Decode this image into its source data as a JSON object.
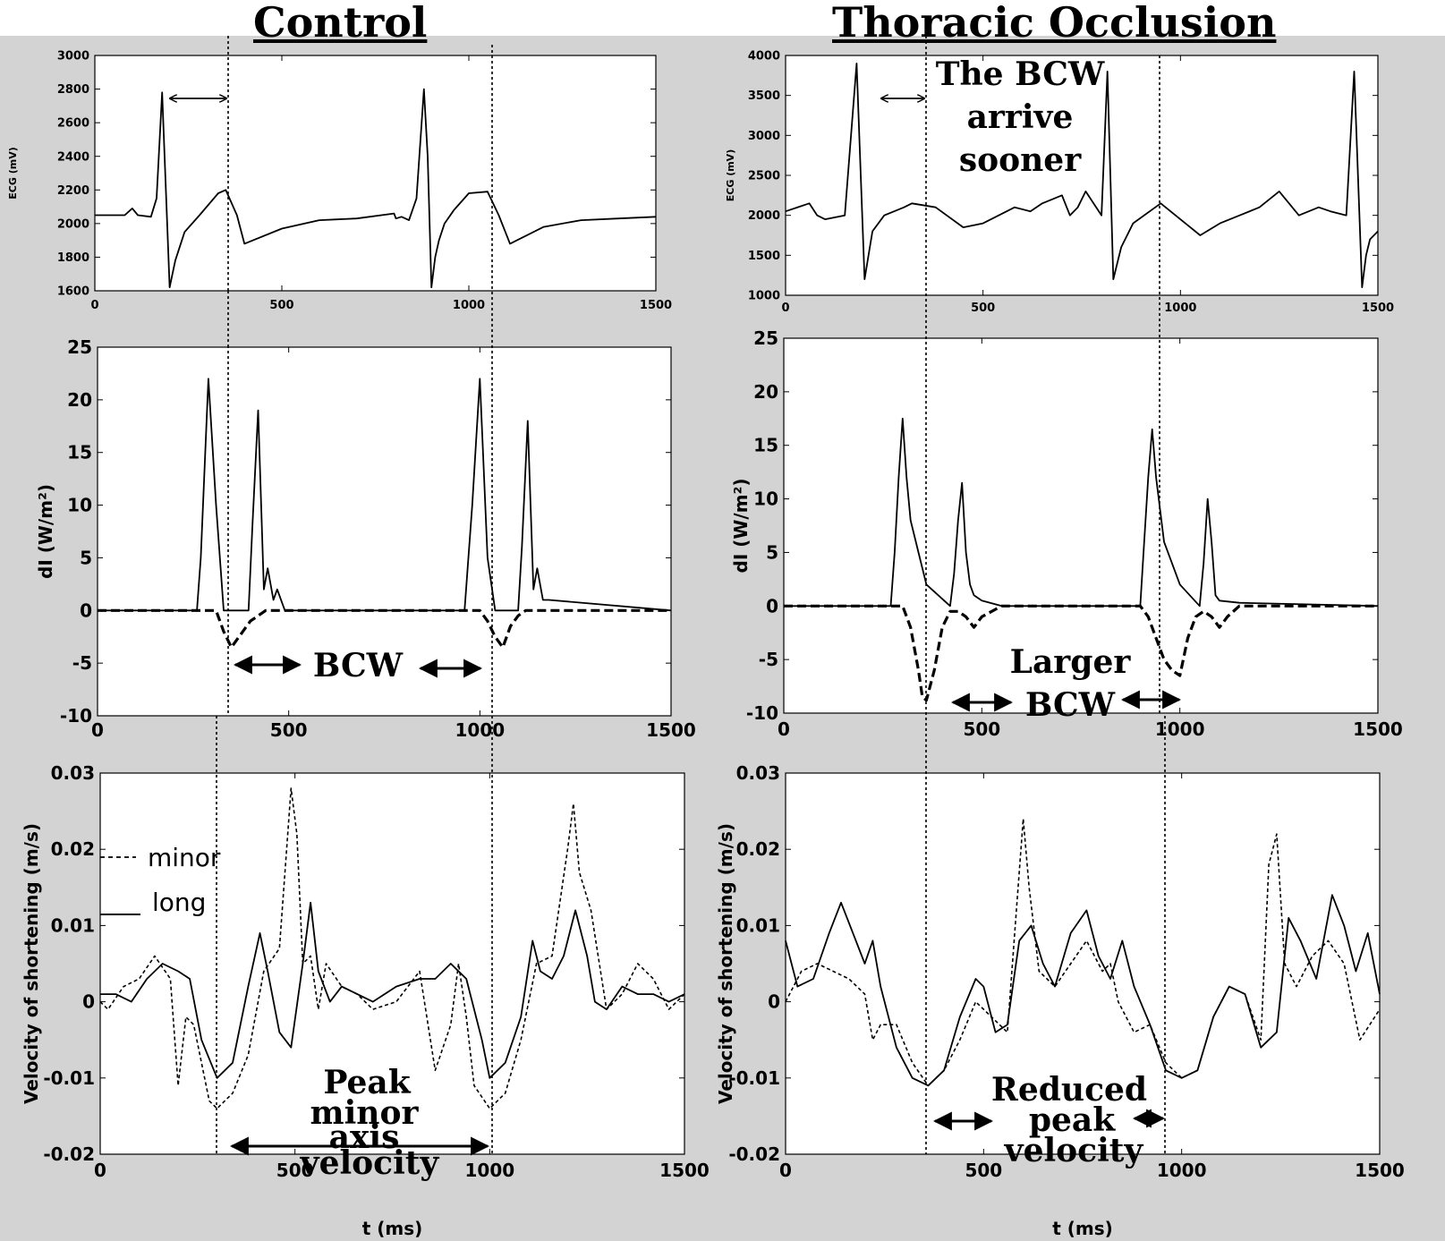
{
  "titles": {
    "left": "Control",
    "right": "Thoracic Occlusion"
  },
  "legend": {
    "minor": "minor",
    "long": "long"
  },
  "annotations": {
    "bcw": "BCW",
    "larger": "Larger",
    "larger_bcw": "BCW",
    "arrive_lines": [
      "The BCW",
      "arrive",
      "sooner"
    ],
    "peak_lines": [
      "Peak",
      "minor",
      "axis",
      "velocity"
    ],
    "reduced_lines": [
      "Reduced",
      "peak",
      "velocity"
    ]
  },
  "chart_data": [
    {
      "type": "line",
      "panel": "control-ecg",
      "title": "",
      "xlabel": "",
      "ylabel": "ECG (mV)",
      "xlim": [
        0,
        1500
      ],
      "ylim": [
        1600,
        3000
      ],
      "xticks": [
        "0",
        "500",
        "1000",
        "1500"
      ],
      "yticks": [
        "1600",
        "1800",
        "2000",
        "2200",
        "2400",
        "2600",
        "2800",
        "3000"
      ],
      "series": [
        {
          "style": "solid",
          "x": [
            0,
            80,
            100,
            115,
            150,
            165,
            180,
            190,
            200,
            215,
            240,
            280,
            330,
            350,
            380,
            400,
            500,
            600,
            700,
            800,
            805,
            820,
            840,
            860,
            880,
            890,
            900,
            910,
            920,
            935,
            960,
            1000,
            1050,
            1080,
            1110,
            1200,
            1300,
            1400,
            1500
          ],
          "y": [
            2050,
            2050,
            2090,
            2050,
            2040,
            2150,
            2780,
            2200,
            1620,
            1780,
            1950,
            2050,
            2180,
            2200,
            2050,
            1880,
            1970,
            2020,
            2030,
            2060,
            2030,
            2040,
            2020,
            2150,
            2800,
            2400,
            1620,
            1800,
            1900,
            2000,
            2080,
            2180,
            2190,
            2050,
            1880,
            1980,
            2020,
            2030,
            2040
          ]
        }
      ]
    },
    {
      "type": "line",
      "panel": "thoracic-ecg",
      "title": "",
      "xlabel": "",
      "ylabel": "ECG (mV)",
      "xlim": [
        0,
        1500
      ],
      "ylim": [
        1000,
        4000
      ],
      "xticks": [
        "0",
        "500",
        "1000",
        "1500"
      ],
      "yticks": [
        "1000",
        "1500",
        "2000",
        "2500",
        "3000",
        "3500",
        "4000"
      ],
      "series": [
        {
          "style": "solid",
          "x": [
            0,
            60,
            80,
            100,
            150,
            180,
            200,
            220,
            250,
            300,
            320,
            380,
            450,
            500,
            580,
            620,
            650,
            700,
            720,
            740,
            760,
            800,
            815,
            830,
            850,
            880,
            950,
            1050,
            1100,
            1150,
            1200,
            1250,
            1300,
            1350,
            1380,
            1420,
            1440,
            1460,
            1470,
            1480,
            1500
          ],
          "y": [
            2050,
            2150,
            2000,
            1950,
            2000,
            3900,
            1200,
            1800,
            2000,
            2100,
            2150,
            2100,
            1850,
            1900,
            2100,
            2050,
            2150,
            2250,
            2000,
            2100,
            2300,
            2000,
            3800,
            1200,
            1600,
            1900,
            2150,
            1750,
            1900,
            2000,
            2100,
            2300,
            2000,
            2100,
            2050,
            2000,
            3800,
            1100,
            1500,
            1700,
            1800
          ]
        }
      ]
    },
    {
      "type": "line",
      "panel": "control-di",
      "title": "",
      "xlabel": "",
      "ylabel": "dI (W/m²)",
      "xlim": [
        0,
        1500
      ],
      "ylim": [
        -10,
        25
      ],
      "xticks": [
        "0",
        "500",
        "1000",
        "1500"
      ],
      "yticks": [
        "-10",
        "-5",
        "0",
        "5",
        "10",
        "15",
        "20",
        "25"
      ],
      "series": [
        {
          "style": "solid",
          "x": [
            0,
            260,
            270,
            290,
            310,
            330,
            395,
            405,
            420,
            435,
            445,
            460,
            470,
            490,
            500,
            960,
            980,
            1000,
            1020,
            1040,
            1100,
            1110,
            1125,
            1140,
            1150,
            1165,
            1180,
            1500
          ],
          "y": [
            0,
            0,
            5,
            22,
            10,
            0,
            0,
            8,
            19,
            2,
            4,
            1,
            2,
            0,
            0,
            0,
            10,
            22,
            5,
            0,
            0,
            6,
            18,
            2,
            4,
            1,
            1,
            0
          ]
        },
        {
          "style": "dashed",
          "x": [
            0,
            310,
            330,
            350,
            380,
            400,
            420,
            440,
            460,
            1000,
            1020,
            1040,
            1060,
            1080,
            1100,
            1120,
            1500
          ],
          "y": [
            0,
            0,
            -2,
            -3.5,
            -2,
            -1,
            -0.5,
            0,
            0,
            0,
            -1,
            -2.5,
            -3.5,
            -1.5,
            -0.5,
            0,
            0
          ]
        }
      ]
    },
    {
      "type": "line",
      "panel": "thoracic-di",
      "title": "",
      "xlabel": "",
      "ylabel": "dI (W/m²)",
      "xlim": [
        0,
        1500
      ],
      "ylim": [
        -10,
        25
      ],
      "xticks": [
        "0",
        "500",
        "1000",
        "1500"
      ],
      "yticks": [
        "-10",
        "-5",
        "0",
        "5",
        "10",
        "15",
        "20",
        "25"
      ],
      "series": [
        {
          "style": "solid",
          "x": [
            0,
            270,
            280,
            290,
            300,
            310,
            320,
            340,
            360,
            420,
            430,
            440,
            450,
            460,
            470,
            480,
            500,
            550,
            900,
            910,
            920,
            930,
            940,
            960,
            1000,
            1050,
            1060,
            1070,
            1080,
            1090,
            1100,
            1150,
            1500
          ],
          "y": [
            0,
            0,
            5,
            12,
            17.5,
            12,
            8,
            5,
            2,
            0,
            3,
            8,
            11.5,
            5,
            2,
            1,
            0.5,
            0,
            0,
            6,
            12,
            16.5,
            12,
            6,
            2,
            0,
            4,
            10,
            6,
            1,
            0.5,
            0.3,
            0
          ]
        },
        {
          "style": "dashed",
          "x": [
            0,
            300,
            320,
            340,
            350,
            360,
            380,
            400,
            420,
            440,
            460,
            480,
            500,
            550,
            900,
            920,
            940,
            960,
            980,
            1000,
            1020,
            1040,
            1060,
            1080,
            1100,
            1120,
            1150,
            1200,
            1500
          ],
          "y": [
            0,
            0,
            -2,
            -6,
            -8.5,
            -8.8,
            -6,
            -2,
            -0.5,
            -0.5,
            -1,
            -2,
            -1,
            0,
            0,
            -1,
            -3,
            -5,
            -6,
            -6.5,
            -3,
            -1,
            -0.5,
            -1,
            -2,
            -1,
            0,
            0,
            0
          ]
        }
      ]
    },
    {
      "type": "line",
      "panel": "control-velocity",
      "title": "",
      "xlabel": "t (ms)",
      "ylabel": "Velocity of shortening (m/s)",
      "xlim": [
        0,
        1500
      ],
      "ylim": [
        -0.02,
        0.03
      ],
      "xticks": [
        "0",
        "500",
        "1000",
        "1500"
      ],
      "yticks": [
        "-0.02",
        "-0.01",
        "0",
        "0.01",
        "0.02",
        "0.03"
      ],
      "series": [
        {
          "name": "minor",
          "style": "dashed",
          "x": [
            0,
            20,
            60,
            100,
            140,
            180,
            200,
            220,
            240,
            260,
            280,
            300,
            340,
            380,
            420,
            460,
            490,
            505,
            520,
            540,
            560,
            580,
            620,
            660,
            700,
            760,
            820,
            860,
            900,
            920,
            940,
            960,
            1000,
            1040,
            1080,
            1120,
            1160,
            1200,
            1215,
            1230,
            1260,
            1300,
            1340,
            1380,
            1420,
            1460,
            1500
          ],
          "y": [
            0,
            -0.001,
            0.002,
            0.003,
            0.006,
            0.003,
            -0.011,
            -0.002,
            -0.003,
            -0.008,
            -0.013,
            -0.014,
            -0.012,
            -0.007,
            0.004,
            0.007,
            0.028,
            0.022,
            0.005,
            0.006,
            -0.001,
            0.005,
            0.002,
            0.001,
            -0.001,
            0,
            0.004,
            -0.009,
            -0.003,
            0.005,
            -0.002,
            -0.011,
            -0.014,
            -0.012,
            -0.005,
            0.005,
            0.006,
            0.02,
            0.026,
            0.017,
            0.012,
            -0.001,
            0.001,
            0.005,
            0.003,
            -0.001,
            0.001
          ]
        },
        {
          "name": "long",
          "style": "solid",
          "x": [
            0,
            40,
            80,
            120,
            160,
            200,
            230,
            260,
            300,
            340,
            380,
            410,
            430,
            460,
            490,
            520,
            540,
            560,
            590,
            620,
            660,
            700,
            760,
            820,
            860,
            900,
            940,
            980,
            1000,
            1040,
            1080,
            1110,
            1130,
            1160,
            1190,
            1220,
            1250,
            1270,
            1300,
            1340,
            1380,
            1420,
            1460,
            1500
          ],
          "y": [
            0.001,
            0.001,
            0,
            0.003,
            0.005,
            0.004,
            0.003,
            -0.005,
            -0.01,
            -0.008,
            0.002,
            0.009,
            0.004,
            -0.004,
            -0.006,
            0.005,
            0.013,
            0.004,
            0,
            0.002,
            0.001,
            0,
            0.002,
            0.003,
            0.003,
            0.005,
            0.003,
            -0.005,
            -0.01,
            -0.008,
            -0.002,
            0.008,
            0.004,
            0.003,
            0.006,
            0.012,
            0.006,
            0,
            -0.001,
            0.002,
            0.001,
            0.001,
            0,
            0.001
          ]
        }
      ]
    },
    {
      "type": "line",
      "panel": "thoracic-velocity",
      "title": "",
      "xlabel": "t (ms)",
      "ylabel": "Velocity of shortening (m/s)",
      "xlim": [
        0,
        1500
      ],
      "ylim": [
        -0.02,
        0.03
      ],
      "xticks": [
        "0",
        "500",
        "1000",
        "1500"
      ],
      "yticks": [
        "-0.02",
        "-0.01",
        "0",
        "0.01",
        "0.02",
        "0.03"
      ],
      "series": [
        {
          "name": "minor",
          "style": "dashed",
          "x": [
            0,
            40,
            80,
            120,
            160,
            200,
            220,
            240,
            280,
            320,
            360,
            400,
            440,
            480,
            520,
            560,
            580,
            600,
            615,
            640,
            680,
            720,
            760,
            800,
            820,
            840,
            880,
            920,
            960,
            1000,
            1040,
            1080,
            1120,
            1160,
            1200,
            1220,
            1240,
            1260,
            1290,
            1330,
            1370,
            1410,
            1450,
            1500
          ],
          "y": [
            0,
            0.004,
            0.005,
            0.004,
            0.003,
            0.001,
            -0.005,
            -0.003,
            -0.003,
            -0.008,
            -0.011,
            -0.009,
            -0.005,
            0,
            -0.002,
            -0.004,
            0.01,
            0.024,
            0.015,
            0.004,
            0.002,
            0.005,
            0.008,
            0.004,
            0.005,
            0,
            -0.004,
            -0.003,
            -0.008,
            -0.01,
            -0.009,
            -0.002,
            0.002,
            0.001,
            -0.005,
            0.018,
            0.022,
            0.005,
            0.002,
            0.006,
            0.008,
            0.005,
            -0.005,
            -0.001
          ]
        },
        {
          "name": "long",
          "style": "solid",
          "x": [
            0,
            30,
            70,
            110,
            140,
            170,
            200,
            220,
            240,
            280,
            320,
            360,
            400,
            440,
            480,
            500,
            530,
            560,
            590,
            620,
            650,
            680,
            720,
            760,
            790,
            820,
            850,
            880,
            920,
            960,
            1000,
            1040,
            1080,
            1120,
            1160,
            1200,
            1240,
            1270,
            1300,
            1340,
            1380,
            1410,
            1440,
            1470,
            1500
          ],
          "y": [
            0.008,
            0.002,
            0.003,
            0.009,
            0.013,
            0.009,
            0.005,
            0.008,
            0.002,
            -0.006,
            -0.01,
            -0.011,
            -0.009,
            -0.002,
            0.003,
            0.002,
            -0.004,
            -0.003,
            0.008,
            0.01,
            0.005,
            0.002,
            0.009,
            0.012,
            0.006,
            0.003,
            0.008,
            0.002,
            -0.003,
            -0.009,
            -0.01,
            -0.009,
            -0.002,
            0.002,
            0.001,
            -0.006,
            -0.004,
            0.011,
            0.008,
            0.003,
            0.014,
            0.01,
            0.004,
            0.009,
            0.001
          ]
        }
      ]
    }
  ]
}
